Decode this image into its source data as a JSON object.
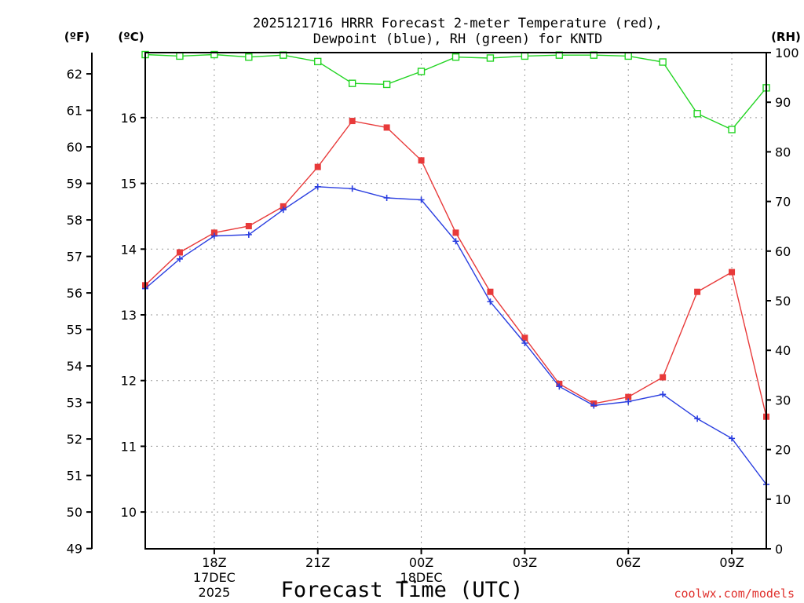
{
  "chart_data": {
    "type": "line",
    "title_line1": "2025121716 HRRR Forecast 2-meter Temperature (red),",
    "title_line2": "Dewpoint (blue), RH (green) for KNTD",
    "xlabel": "Forecast Time (UTC)",
    "credit": "coolwx.com/models",
    "left_outer_unit": "(ºF)",
    "left_inner_unit": "(ºC)",
    "right_unit": "(RH)",
    "x_hours": [
      16,
      17,
      18,
      19,
      20,
      21,
      22,
      23,
      24,
      25,
      26,
      27,
      28,
      29,
      30,
      31,
      32,
      33,
      34
    ],
    "xlim": [
      16,
      34
    ],
    "x_ticks": [
      {
        "hour": 18,
        "lines": [
          "18Z",
          "17DEC",
          "2025"
        ]
      },
      {
        "hour": 21,
        "lines": [
          "21Z"
        ]
      },
      {
        "hour": 24,
        "lines": [
          "00Z",
          "18DEC"
        ]
      },
      {
        "hour": 27,
        "lines": [
          "03Z"
        ]
      },
      {
        "hour": 30,
        "lines": [
          "06Z"
        ]
      },
      {
        "hour": 33,
        "lines": [
          "09Z"
        ]
      }
    ],
    "celsius_ticks": [
      10,
      11,
      12,
      13,
      14,
      15,
      16
    ],
    "fahrenheit_ticks": [
      49,
      50,
      51,
      52,
      53,
      54,
      55,
      56,
      57,
      58,
      59,
      60,
      61,
      62
    ],
    "rh_ticks": [
      0,
      10,
      20,
      30,
      40,
      50,
      60,
      70,
      80,
      90,
      100
    ],
    "ylim_c": [
      9.44,
      16.99
    ],
    "ylim_rh": [
      0,
      100
    ],
    "series": [
      {
        "name": "Temperature",
        "unit": "C",
        "color": "#e83a3a",
        "marker": "filled-square",
        "values": [
          13.45,
          13.95,
          14.25,
          14.35,
          14.65,
          15.25,
          15.95,
          15.85,
          15.35,
          14.25,
          13.35,
          12.65,
          11.95,
          11.65,
          11.75,
          12.05,
          13.35,
          13.65,
          11.45
        ]
      },
      {
        "name": "Dewpoint",
        "unit": "C",
        "color": "#2a3ee0",
        "marker": "plus",
        "values": [
          13.4,
          13.85,
          14.2,
          14.22,
          14.6,
          14.95,
          14.92,
          14.78,
          14.75,
          14.12,
          13.2,
          12.57,
          11.91,
          11.62,
          11.68,
          11.79,
          11.42,
          11.12,
          10.42
        ]
      },
      {
        "name": "RH",
        "unit": "%",
        "color": "#22d422",
        "marker": "open-square",
        "values": [
          99.6,
          99.3,
          99.6,
          99.1,
          99.5,
          98.2,
          93.8,
          93.6,
          96.2,
          99.1,
          98.9,
          99.3,
          99.5,
          99.5,
          99.3,
          98.1,
          87.7,
          84.5,
          92.9
        ]
      }
    ]
  }
}
